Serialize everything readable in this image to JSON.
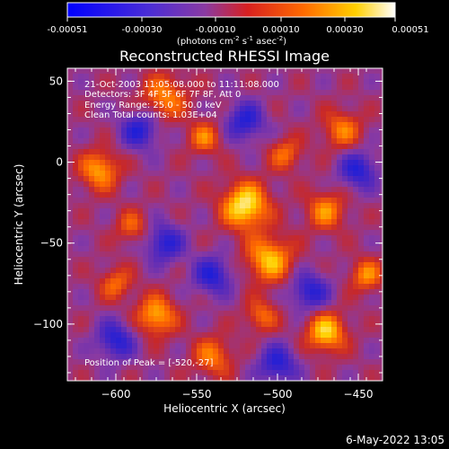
{
  "colorbar": {
    "tick_labels": [
      "-0.00051",
      "-0.00030",
      "-0.00010",
      "0.00010",
      "0.00030",
      "0.00051"
    ],
    "unit_label": "(photons cm",
    "unit_exp1": "-2",
    "unit_mid": " s",
    "unit_exp2": "-1",
    "unit_mid2": " asec",
    "unit_exp3": "-2",
    "unit_end": ")"
  },
  "annotations": {
    "time": "21-Oct-2003 11:05:08.000 to 11:11:08.000",
    "detectors": "Detectors: 3F 4F 5F 6F 7F 8F, Att 0",
    "energy": "Energy Range: 25.0 - 50.0 keV",
    "clean": "Clean      Total counts: 1.03E+04",
    "peak": "Position of Peak = [-520,-27]"
  },
  "footer": {
    "date": "6-May-2022 13:05"
  },
  "chart_data": {
    "type": "heatmap",
    "title": "Reconstructed RHESSI Image",
    "xlabel": "Heliocentric X (arcsec)",
    "ylabel": "Heliocentric Y (arcsec)",
    "xlim": [
      -630,
      -435
    ],
    "ylim": [
      -135,
      58
    ],
    "x_ticks": [
      -600,
      -550,
      -500,
      -450
    ],
    "x_tick_labels": [
      "−600",
      "−550",
      "−500",
      "−450"
    ],
    "y_ticks": [
      50,
      0,
      -50,
      -100
    ],
    "y_tick_labels": [
      "50",
      "0",
      "−50",
      "−100"
    ],
    "colorbar_range": [
      -0.00051,
      0.00051
    ],
    "colormap": "blue-purple-red-yellow-white",
    "peak_position": [
      -520,
      -27
    ],
    "colormap_stops": [
      "#1e1ed8",
      "#5c2fb8",
      "#8a3aa2",
      "#c82828",
      "#ff6a00",
      "#ffd000",
      "#ffffff"
    ]
  }
}
